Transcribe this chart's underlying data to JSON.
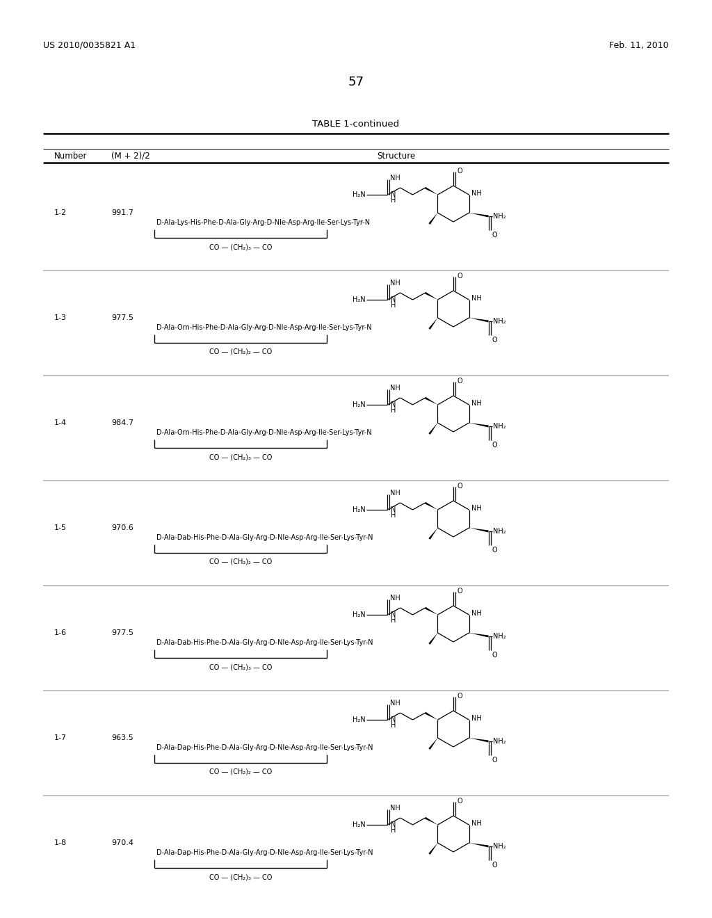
{
  "page_header_left": "US 2010/0035821 A1",
  "page_header_right": "Feb. 11, 2010",
  "page_number": "57",
  "table_title": "TABLE 1-continued",
  "col1_header": "Number",
  "col2_header": "(M + 2)/2",
  "col3_header": "Structure",
  "rows": [
    {
      "number": "1-2",
      "mz": "991.7",
      "linker": "CO — (CH₂)₃ — CO",
      "peptide": "D-Ala-Lys-His-Phe-D-Ala-Gly-Arg-D-Nle-Asp-Arg-Ile-Ser-Lys-Tyr-N"
    },
    {
      "number": "1-3",
      "mz": "977.5",
      "linker": "CO — (CH₂)₂ — CO",
      "peptide": "D-Ala-Orn-His-Phe-D-Ala-Gly-Arg-D-Nle-Asp-Arg-Ile-Ser-Lys-Tyr-N"
    },
    {
      "number": "1-4",
      "mz": "984.7",
      "linker": "CO — (CH₂)₃ — CO",
      "peptide": "D-Ala-Orn-His-Phe-D-Ala-Gly-Arg-D-Nle-Asp-Arg-Ile-Ser-Lys-Tyr-N"
    },
    {
      "number": "1-5",
      "mz": "970.6",
      "linker": "CO — (CH₂)₂ — CO",
      "peptide": "D-Ala-Dab-His-Phe-D-Ala-Gly-Arg-D-Nle-Asp-Arg-Ile-Ser-Lys-Tyr-N"
    },
    {
      "number": "1-6",
      "mz": "977.5",
      "linker": "CO — (CH₂)₃ — CO",
      "peptide": "D-Ala-Dab-His-Phe-D-Ala-Gly-Arg-D-Nle-Asp-Arg-Ile-Ser-Lys-Tyr-N"
    },
    {
      "number": "1-7",
      "mz": "963.5",
      "linker": "CO — (CH₂)₂ — CO",
      "peptide": "D-Ala-Dap-His-Phe-D-Ala-Gly-Arg-D-Nle-Asp-Arg-Ile-Ser-Lys-Tyr-N"
    },
    {
      "number": "1-8",
      "mz": "970.4",
      "linker": "CO — (CH₂)₃ — CO",
      "peptide": "D-Ala-Dap-His-Phe-D-Ala-Gly-Arg-D-Nle-Asp-Arg-Ile-Ser-Lys-Tyr-N"
    }
  ],
  "bg_color": "#ffffff",
  "text_color": "#000000"
}
